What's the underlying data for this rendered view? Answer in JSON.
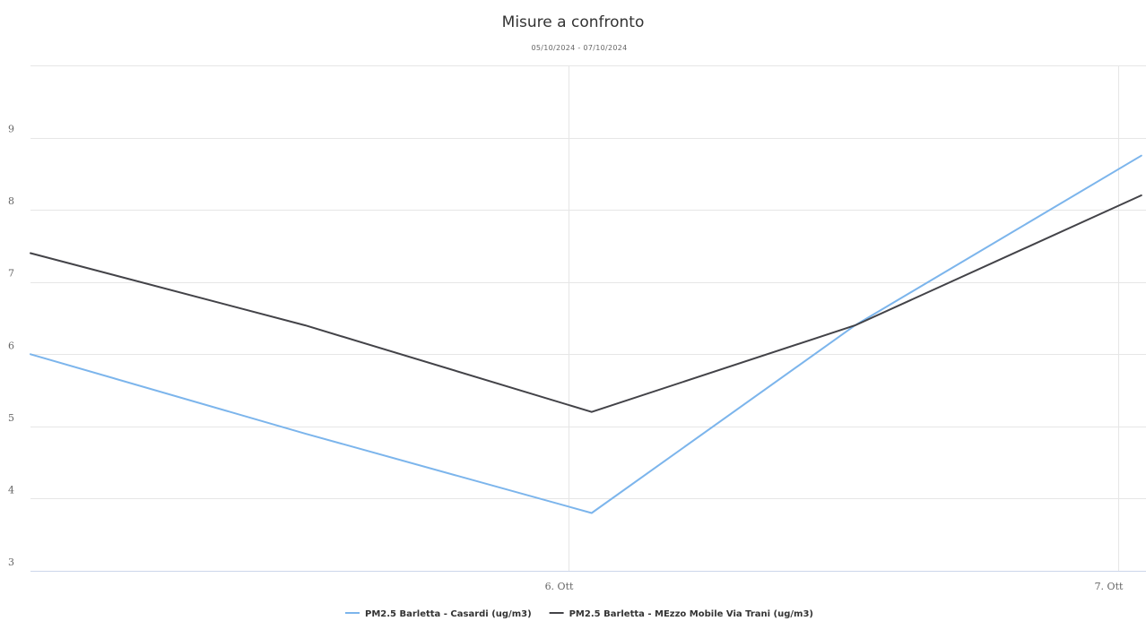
{
  "chart_data": {
    "type": "line",
    "title": "Misure a confronto",
    "subtitle": "05/10/2024 - 07/10/2024",
    "x": [
      "2024-10-05",
      "2024-10-05T12:00",
      "2024-10-06",
      "2024-10-06T12:00",
      "2024-10-07"
    ],
    "x_ticks": [
      {
        "value": "2024-10-06",
        "label": "6. Ott"
      },
      {
        "value": "2024-10-07",
        "label": "7. Ott"
      }
    ],
    "ylim": [
      3,
      10
    ],
    "y_ticks": [
      3,
      4,
      5,
      6,
      7,
      8,
      9
    ],
    "grid": true,
    "legend_position": "bottom-center",
    "series": [
      {
        "name": "PM2.5 Barletta - Casardi (ug/m3)",
        "color": "#7cb5ec",
        "points": [
          {
            "x": "2024-10-05T00:00",
            "y": 6.0
          },
          {
            "x": "2024-10-05T12:00",
            "y": 4.9
          },
          {
            "x": "2024-10-06T00:30",
            "y": 3.8
          },
          {
            "x": "2024-10-06T12:00",
            "y": 6.4
          },
          {
            "x": "2024-10-07T00:30",
            "y": 8.75
          }
        ]
      },
      {
        "name": "PM2.5 Barletta - MEzzo Mobile Via Trani (ug/m3)",
        "color": "#434348",
        "points": [
          {
            "x": "2024-10-05T00:00",
            "y": 7.4
          },
          {
            "x": "2024-10-05T12:00",
            "y": 6.4
          },
          {
            "x": "2024-10-06T00:30",
            "y": 5.2
          },
          {
            "x": "2024-10-06T12:00",
            "y": 6.4
          },
          {
            "x": "2024-10-07T00:30",
            "y": 8.2
          }
        ]
      }
    ]
  }
}
